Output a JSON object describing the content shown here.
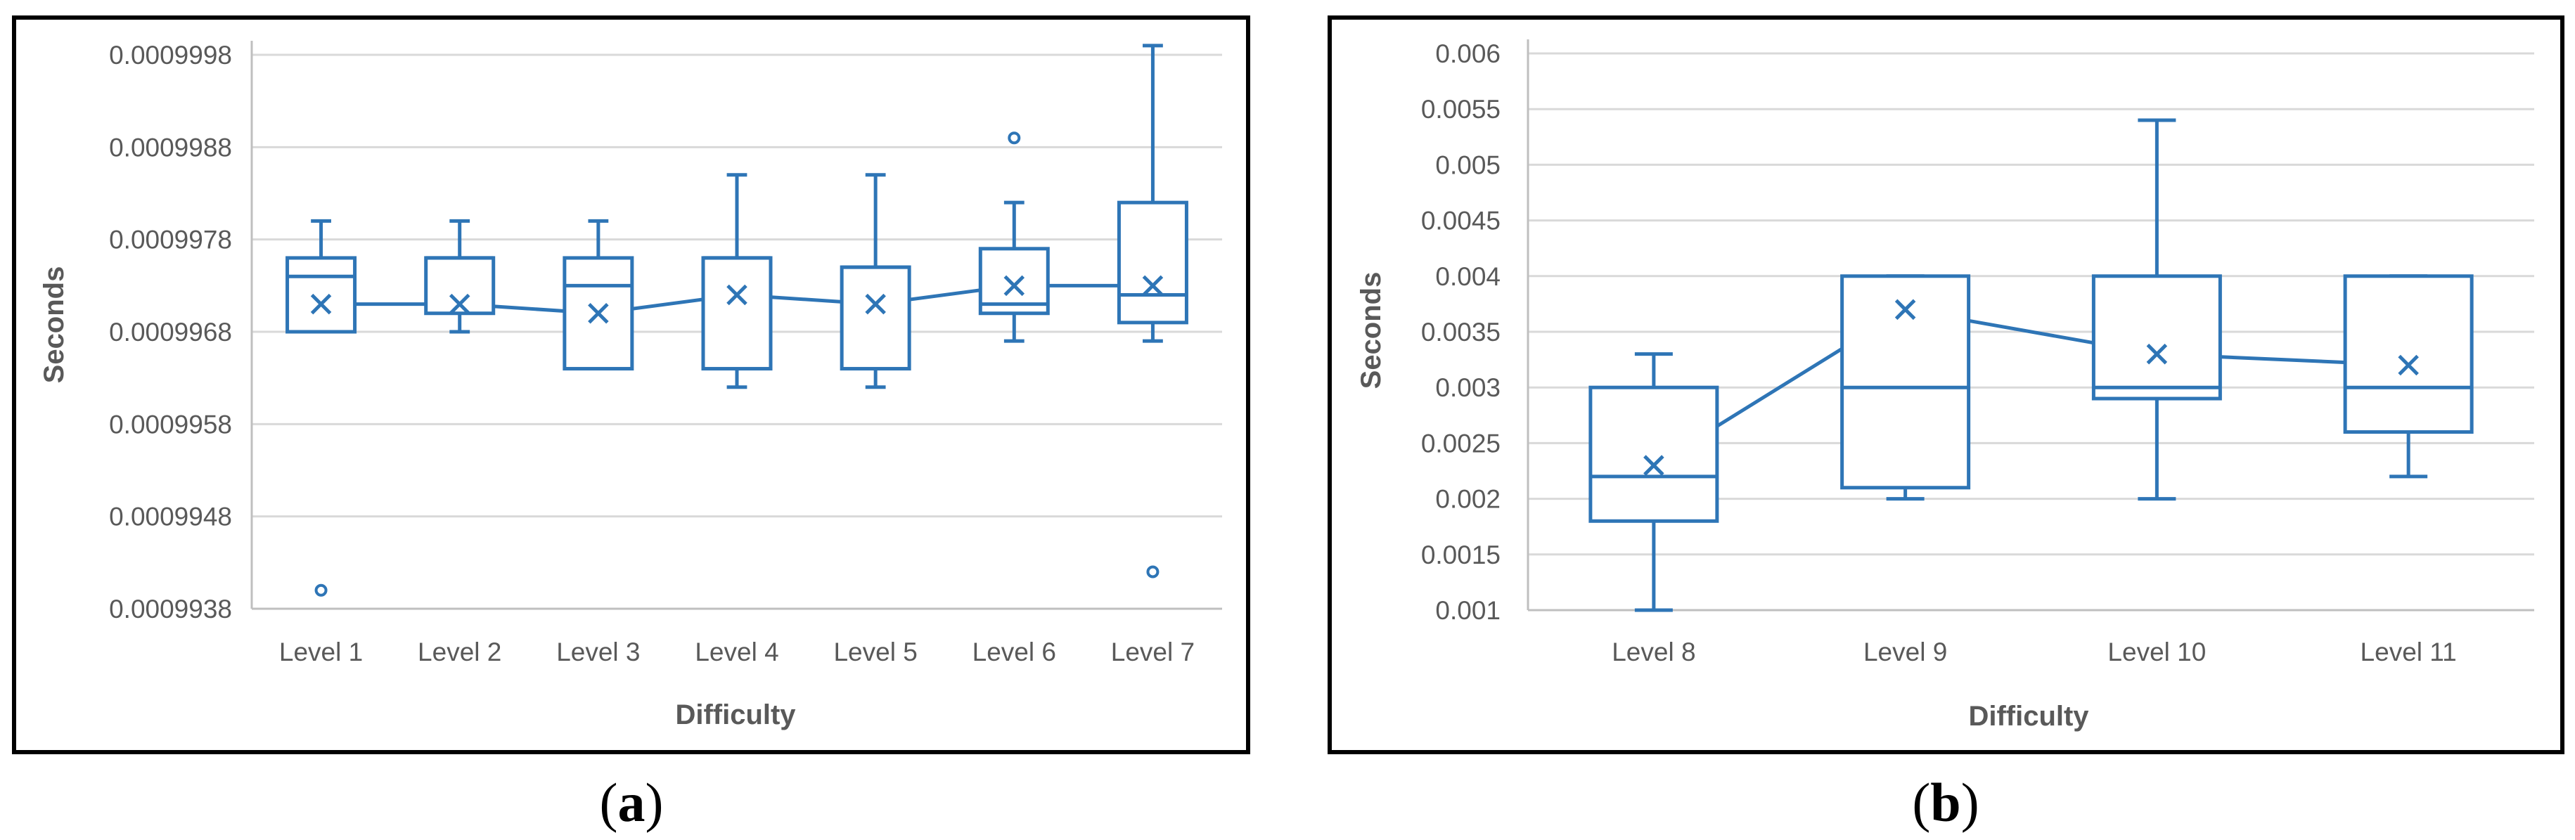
{
  "figure": {
    "colors": {
      "series": "#2e75b6",
      "grid": "#d9d9d9",
      "axis": "#bfbfbf",
      "frame": "#000000"
    }
  },
  "chart_data": [
    {
      "type": "box",
      "panel_label": {
        "open": "(",
        "letter": "a",
        "close": ")"
      },
      "xlabel": "Difficulty",
      "ylabel": "Seconds",
      "ylim": [
        0.0009938,
        0.0009998
      ],
      "yticks": [
        0.0009938,
        0.0009948,
        0.0009958,
        0.0009968,
        0.0009978,
        0.0009988,
        0.0009998
      ],
      "ytick_labels": [
        "0.0009938",
        "0.0009948",
        "0.0009958",
        "0.0009968",
        "0.0009978",
        "0.0009988",
        "0.0009998"
      ],
      "categories": [
        "Level 1",
        "Level 2",
        "Level 3",
        "Level 4",
        "Level 5",
        "Level 6",
        "Level 7"
      ],
      "boxes": [
        {
          "min": 0.0009968,
          "q1": 0.0009968,
          "median": 0.0009974,
          "q3": 0.0009976,
          "max": 0.000998,
          "mean": 0.0009971,
          "outliers": [
            0.000994
          ]
        },
        {
          "min": 0.0009968,
          "q1": 0.000997,
          "median": 0.0009976,
          "q3": 0.0009976,
          "max": 0.000998,
          "mean": 0.0009971,
          "outliers": []
        },
        {
          "min": 0.0009964,
          "q1": 0.0009964,
          "median": 0.0009973,
          "q3": 0.0009976,
          "max": 0.000998,
          "mean": 0.000997,
          "outliers": []
        },
        {
          "min": 0.0009962,
          "q1": 0.0009964,
          "median": 0.0009976,
          "q3": 0.0009976,
          "max": 0.0009985,
          "mean": 0.0009972,
          "outliers": []
        },
        {
          "min": 0.0009962,
          "q1": 0.0009964,
          "median": 0.0009975,
          "q3": 0.0009975,
          "max": 0.0009985,
          "mean": 0.0009971,
          "outliers": []
        },
        {
          "min": 0.0009967,
          "q1": 0.000997,
          "median": 0.0009971,
          "q3": 0.0009977,
          "max": 0.0009982,
          "mean": 0.0009973,
          "outliers": [
            0.0009989
          ]
        },
        {
          "min": 0.0009967,
          "q1": 0.0009969,
          "median": 0.0009972,
          "q3": 0.0009982,
          "max": 0.0009999,
          "mean": 0.0009973,
          "outliers": [
            0.0009942
          ]
        }
      ]
    },
    {
      "type": "box",
      "panel_label": {
        "open": "(",
        "letter": "b",
        "close": ")"
      },
      "xlabel": "Difficulty",
      "ylabel": "Seconds",
      "ylim": [
        0.001,
        0.006
      ],
      "yticks": [
        0.001,
        0.0015,
        0.002,
        0.0025,
        0.003,
        0.0035,
        0.004,
        0.0045,
        0.005,
        0.0055,
        0.006
      ],
      "ytick_labels": [
        "0.001",
        "0.0015",
        "0.002",
        "0.0025",
        "0.003",
        "0.0035",
        "0.004",
        "0.0045",
        "0.005",
        "0.0055",
        "0.006"
      ],
      "categories": [
        "Level 8",
        "Level 9",
        "Level 10",
        "Level 11"
      ],
      "boxes": [
        {
          "min": 0.001,
          "q1": 0.0018,
          "median": 0.0022,
          "q3": 0.003,
          "max": 0.0033,
          "mean": 0.0023,
          "outliers": []
        },
        {
          "min": 0.002,
          "q1": 0.0021,
          "median": 0.003,
          "q3": 0.004,
          "max": 0.004,
          "mean": 0.0037,
          "outliers": []
        },
        {
          "min": 0.002,
          "q1": 0.0029,
          "median": 0.003,
          "q3": 0.004,
          "max": 0.0054,
          "mean": 0.0033,
          "outliers": []
        },
        {
          "min": 0.0022,
          "q1": 0.0026,
          "median": 0.003,
          "q3": 0.004,
          "max": 0.004,
          "mean": 0.0032,
          "outliers": []
        }
      ]
    }
  ]
}
